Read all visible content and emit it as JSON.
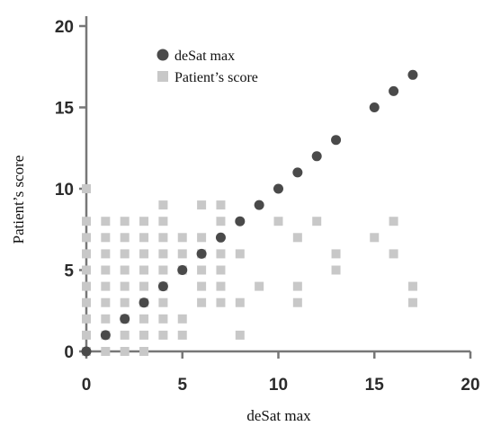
{
  "chart_data": {
    "type": "scatter",
    "xlabel": "deSat max",
    "ylabel": "Patient’s score",
    "xlim": [
      0,
      20
    ],
    "ylim": [
      0,
      20
    ],
    "xticks": [
      0,
      5,
      10,
      15,
      20
    ],
    "yticks": [
      0,
      5,
      10,
      15,
      20
    ],
    "grid": false,
    "legend_position": "top-left",
    "series": [
      {
        "name": "deSat max",
        "marker": "circle",
        "color": "#4a4a4a",
        "points": [
          [
            0,
            0
          ],
          [
            1,
            1
          ],
          [
            2,
            2
          ],
          [
            3,
            3
          ],
          [
            4,
            4
          ],
          [
            5,
            5
          ],
          [
            6,
            6
          ],
          [
            7,
            7
          ],
          [
            8,
            8
          ],
          [
            9,
            9
          ],
          [
            10,
            10
          ],
          [
            11,
            11
          ],
          [
            12,
            12
          ],
          [
            13,
            13
          ],
          [
            15,
            15
          ],
          [
            16,
            16
          ],
          [
            17,
            17
          ]
        ]
      },
      {
        "name": "Patient’s score",
        "marker": "square",
        "color": "#c8c8c8",
        "points": [
          [
            0,
            0
          ],
          [
            0,
            1
          ],
          [
            0,
            2
          ],
          [
            0,
            3
          ],
          [
            0,
            4
          ],
          [
            0,
            5
          ],
          [
            0,
            6
          ],
          [
            0,
            7
          ],
          [
            0,
            8
          ],
          [
            0,
            10
          ],
          [
            1,
            0
          ],
          [
            1,
            1
          ],
          [
            1,
            2
          ],
          [
            1,
            3
          ],
          [
            1,
            4
          ],
          [
            1,
            5
          ],
          [
            1,
            6
          ],
          [
            1,
            7
          ],
          [
            1,
            8
          ],
          [
            2,
            0
          ],
          [
            2,
            1
          ],
          [
            2,
            2
          ],
          [
            2,
            3
          ],
          [
            2,
            4
          ],
          [
            2,
            5
          ],
          [
            2,
            6
          ],
          [
            2,
            7
          ],
          [
            2,
            8
          ],
          [
            3,
            0
          ],
          [
            3,
            1
          ],
          [
            3,
            2
          ],
          [
            3,
            3
          ],
          [
            3,
            4
          ],
          [
            3,
            5
          ],
          [
            3,
            6
          ],
          [
            3,
            7
          ],
          [
            3,
            8
          ],
          [
            4,
            1
          ],
          [
            4,
            2
          ],
          [
            4,
            3
          ],
          [
            4,
            4
          ],
          [
            4,
            5
          ],
          [
            4,
            6
          ],
          [
            4,
            7
          ],
          [
            4,
            8
          ],
          [
            4,
            9
          ],
          [
            5,
            1
          ],
          [
            5,
            2
          ],
          [
            5,
            5
          ],
          [
            5,
            6
          ],
          [
            5,
            7
          ],
          [
            6,
            3
          ],
          [
            6,
            4
          ],
          [
            6,
            5
          ],
          [
            6,
            6
          ],
          [
            6,
            7
          ],
          [
            6,
            9
          ],
          [
            7,
            3
          ],
          [
            7,
            4
          ],
          [
            7,
            5
          ],
          [
            7,
            6
          ],
          [
            7,
            8
          ],
          [
            7,
            9
          ],
          [
            8,
            1
          ],
          [
            8,
            3
          ],
          [
            8,
            6
          ],
          [
            9,
            4
          ],
          [
            10,
            8
          ],
          [
            11,
            3
          ],
          [
            11,
            4
          ],
          [
            11,
            7
          ],
          [
            12,
            8
          ],
          [
            13,
            5
          ],
          [
            13,
            6
          ],
          [
            15,
            7
          ],
          [
            16,
            6
          ],
          [
            16,
            8
          ],
          [
            17,
            3
          ],
          [
            17,
            4
          ]
        ]
      }
    ]
  }
}
